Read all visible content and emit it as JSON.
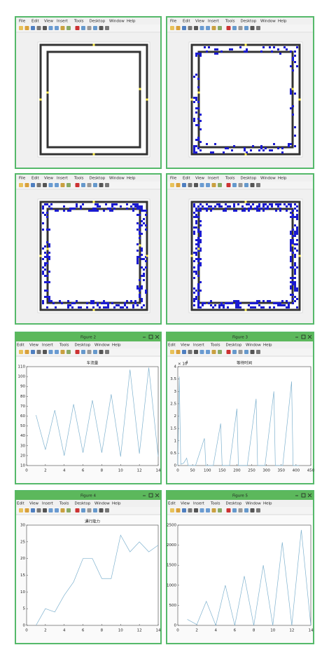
{
  "sim_menu": [
    "File",
    "Edit",
    "View",
    "Insert",
    "Tools",
    "Desktop",
    "Window",
    "Help"
  ],
  "figure_menu": [
    "Edit",
    "View",
    "Insert",
    "Tools",
    "Desktop",
    "Window",
    "Help"
  ],
  "figures": [
    {
      "title": "Figure 2"
    },
    {
      "title": "Figure 3"
    },
    {
      "title": "Figure 4"
    },
    {
      "title": "Figure 5"
    }
  ],
  "chart_data": [
    {
      "type": "line",
      "title": "车流量",
      "x": [
        1,
        2,
        3,
        4,
        5,
        6,
        7,
        8,
        9,
        10,
        11,
        12,
        13,
        14
      ],
      "series": [
        {
          "color": "#7fb2cf",
          "values": [
            61,
            26,
            66,
            20,
            72,
            23,
            76,
            23,
            82,
            19,
            107,
            22,
            109,
            19
          ]
        }
      ],
      "xlim": [
        0,
        14
      ],
      "xticks": [
        0,
        2,
        4,
        6,
        8,
        10,
        12,
        14
      ],
      "ylim": [
        10,
        110
      ],
      "yticks": [
        10,
        20,
        30,
        40,
        50,
        60,
        70,
        80,
        90,
        100,
        110
      ]
    },
    {
      "type": "line",
      "title": "等待时间",
      "y_multiplier": "× 10",
      "y_exponent": "4",
      "x": [
        0,
        5,
        10,
        20,
        30,
        35,
        60,
        90,
        95,
        120,
        145,
        150,
        175,
        200,
        205,
        235,
        265,
        270,
        295,
        325,
        330,
        355,
        385,
        390,
        410
      ],
      "series": [
        {
          "color": "#7fb2cf",
          "values": [
            0,
            3.6,
            0.05,
            0.1,
            0.3,
            0,
            0,
            1.1,
            0,
            0,
            1.7,
            0,
            0,
            2.3,
            0,
            0,
            2.7,
            0,
            0,
            3.0,
            0,
            0,
            3.4,
            0,
            0
          ]
        }
      ],
      "xlim": [
        0,
        450
      ],
      "xticks": [
        0,
        50,
        100,
        150,
        200,
        250,
        300,
        350,
        400,
        450
      ],
      "ylim": [
        0,
        4
      ],
      "yticks": [
        0,
        0.5,
        1,
        1.5,
        2,
        2.5,
        3,
        3.5,
        4
      ]
    },
    {
      "type": "line",
      "title": "通行能力",
      "x": [
        1,
        2,
        3,
        4,
        5,
        6,
        7,
        8,
        9,
        10,
        11,
        12,
        13,
        14
      ],
      "series": [
        {
          "color": "#7fb2cf",
          "values": [
            0,
            5,
            4,
            9,
            13,
            20,
            20,
            14,
            14,
            27,
            22,
            25,
            22,
            24
          ]
        }
      ],
      "xlim": [
        0,
        14
      ],
      "xticks": [
        0,
        2,
        4,
        6,
        8,
        10,
        12,
        14
      ],
      "ylim": [
        0,
        30
      ],
      "yticks": [
        0,
        5,
        10,
        15,
        20,
        25,
        30
      ]
    },
    {
      "type": "line",
      "x": [
        1,
        2,
        3,
        4,
        5,
        6,
        7,
        8,
        9,
        10,
        11,
        12,
        13,
        14
      ],
      "series": [
        {
          "color": "#7fb2cf",
          "values": [
            150,
            20,
            600,
            0,
            1000,
            0,
            1230,
            0,
            1500,
            0,
            2070,
            0,
            2380,
            0
          ]
        }
      ],
      "xlim": [
        0,
        14
      ],
      "xticks": [
        0,
        2,
        4,
        6,
        8,
        10,
        12,
        14
      ],
      "ylim": [
        0,
        2500
      ],
      "yticks": [
        0,
        500,
        1000,
        1500,
        2000,
        2500
      ]
    }
  ]
}
